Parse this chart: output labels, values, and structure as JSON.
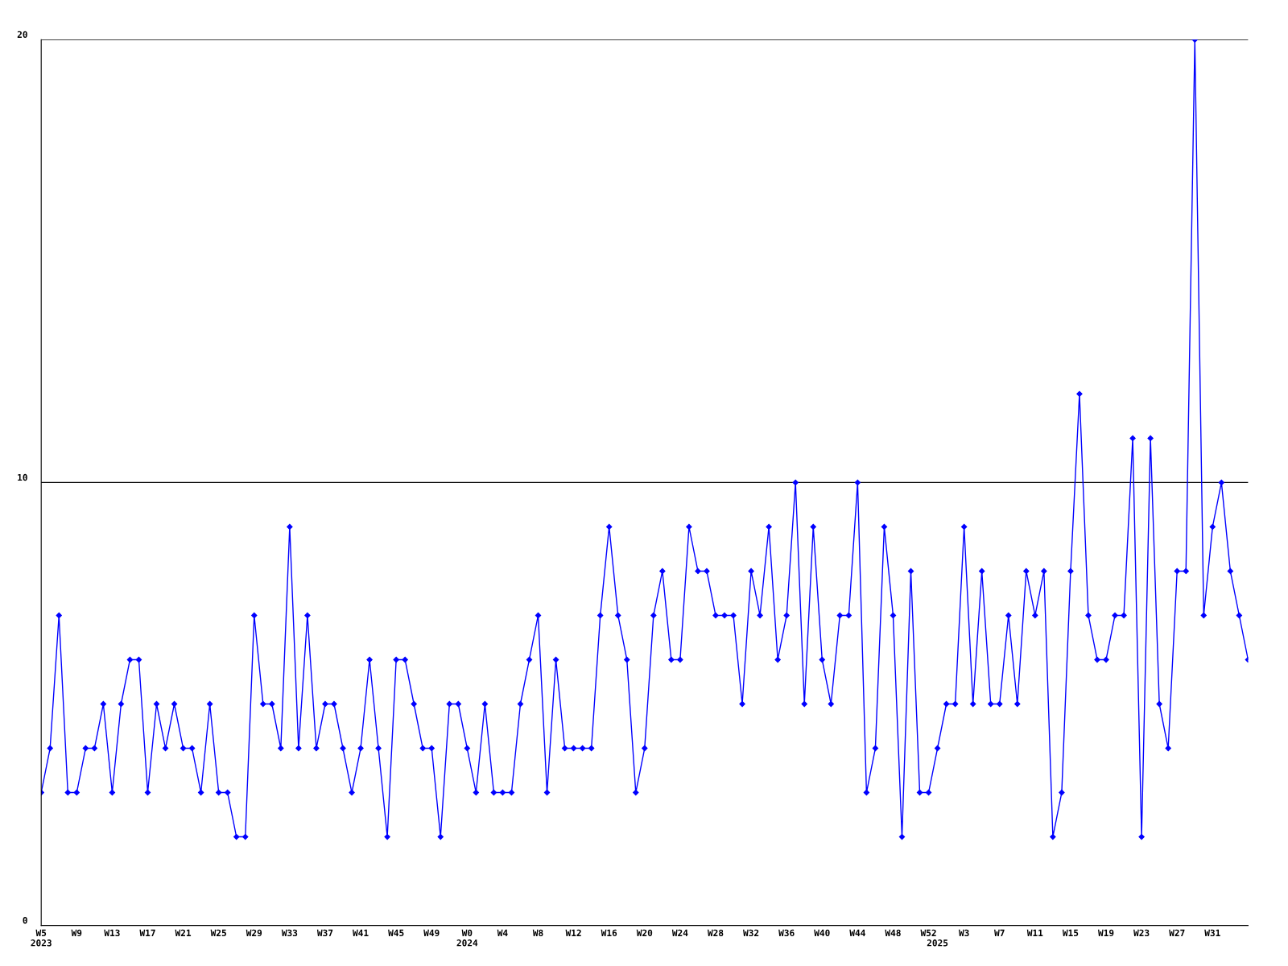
{
  "chart_data": {
    "type": "line",
    "categories": [
      "W5\n2023",
      null,
      null,
      null,
      "W9",
      null,
      null,
      null,
      "W13",
      null,
      null,
      null,
      "W17",
      null,
      null,
      null,
      "W21",
      null,
      null,
      null,
      "W25",
      null,
      null,
      null,
      "W29",
      null,
      null,
      null,
      "W33",
      null,
      null,
      null,
      "W37",
      null,
      null,
      null,
      "W41",
      null,
      null,
      null,
      "W45",
      null,
      null,
      null,
      "W49",
      null,
      null,
      null,
      "W0\n2024",
      null,
      null,
      null,
      "W4",
      null,
      null,
      null,
      "W8",
      null,
      null,
      null,
      "W12",
      null,
      null,
      null,
      "W16",
      null,
      null,
      null,
      "W20",
      null,
      null,
      null,
      "W24",
      null,
      null,
      null,
      "W28",
      null,
      null,
      null,
      "W32",
      null,
      null,
      null,
      "W36",
      null,
      null,
      null,
      "W40",
      null,
      null,
      null,
      "W44",
      null,
      null,
      null,
      "W48",
      null,
      null,
      null,
      "W52",
      "\n2025",
      null,
      null,
      "W3",
      null,
      null,
      null,
      "W7",
      null,
      null,
      null,
      "W11",
      null,
      null,
      null,
      "W15",
      null,
      null,
      null,
      "W19",
      null,
      null,
      null,
      "W23",
      null,
      null,
      null,
      "W27",
      null,
      null,
      null,
      "W31",
      null,
      null,
      null,
      null
    ],
    "series": [
      {
        "color": "#0000ff",
        "values": [
          3,
          4,
          7,
          3,
          3,
          4,
          4,
          5,
          3,
          5,
          6,
          6,
          3,
          5,
          4,
          5,
          4,
          4,
          3,
          5,
          3,
          3,
          2,
          2,
          7,
          5,
          5,
          4,
          9,
          4,
          7,
          4,
          5,
          5,
          4,
          3,
          4,
          6,
          4,
          2,
          6,
          6,
          5,
          4,
          4,
          2,
          5,
          5,
          4,
          3,
          5,
          3,
          3,
          3,
          5,
          6,
          7,
          3,
          6,
          4,
          4,
          4,
          4,
          7,
          9,
          7,
          6,
          3,
          4,
          7,
          8,
          6,
          6,
          9,
          8,
          8,
          7,
          7,
          7,
          5,
          8,
          7,
          9,
          6,
          7,
          10,
          5,
          9,
          6,
          5,
          7,
          7,
          10,
          3,
          4,
          9,
          7,
          2,
          8,
          3,
          3,
          4,
          5,
          5,
          9,
          5,
          8,
          5,
          5,
          7,
          5,
          8,
          7,
          8,
          2,
          3,
          8,
          12,
          7,
          6,
          6,
          7,
          7,
          11,
          2,
          11,
          5,
          4,
          8,
          8,
          20,
          7,
          9,
          10,
          8,
          7,
          6
        ]
      }
    ],
    "ylim": [
      0,
      20
    ],
    "yticks": [
      0,
      10,
      20
    ],
    "grid": "y",
    "legend": false,
    "marker": "diamond",
    "line_style": "solid"
  }
}
